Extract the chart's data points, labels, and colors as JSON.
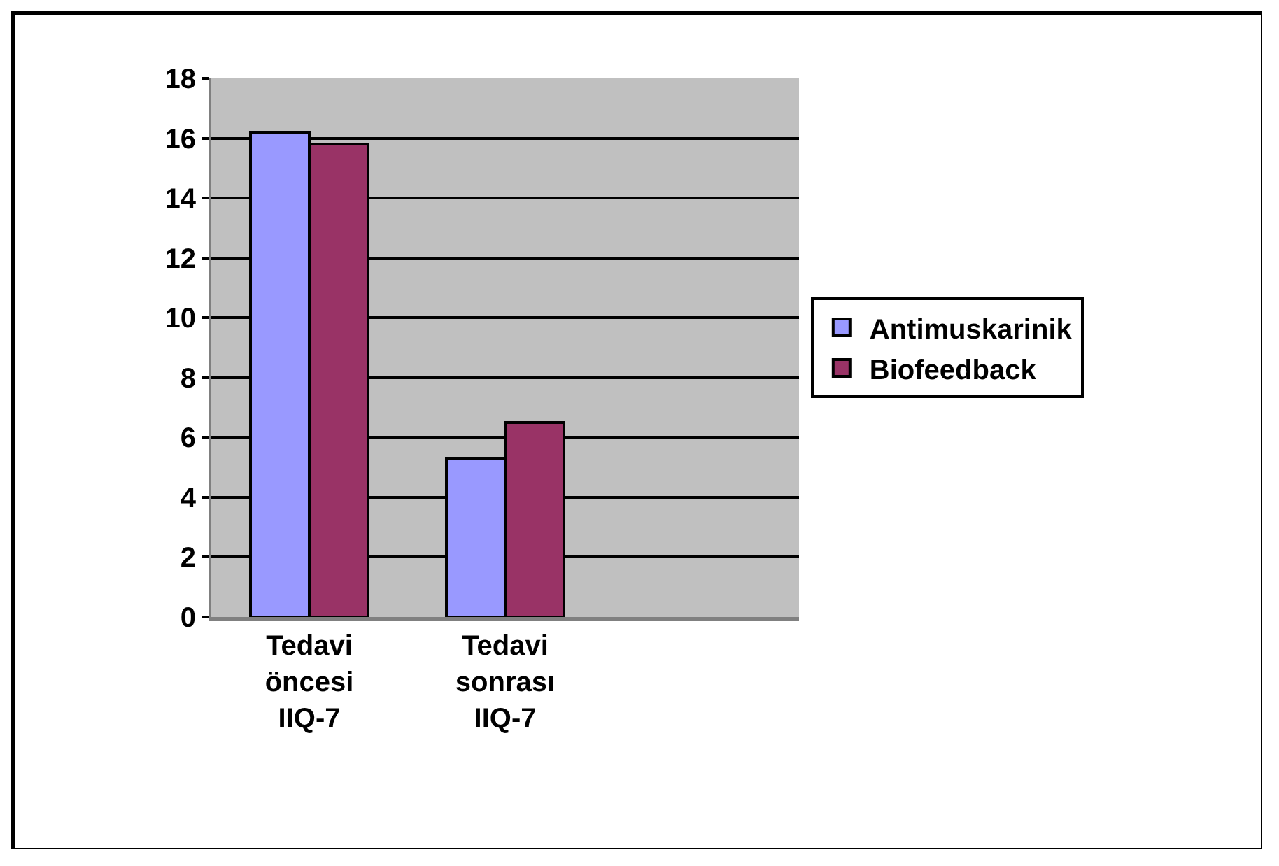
{
  "chart_data": {
    "type": "bar",
    "categories": [
      "Tedavi öncesi IIQ-7",
      "Tedavi sonrası IIQ-7"
    ],
    "series": [
      {
        "name": "Antimuskarinik",
        "color": "#9999ff",
        "values": [
          16.2,
          5.3
        ]
      },
      {
        "name": "Biofeedback",
        "color": "#993366",
        "values": [
          15.8,
          6.5
        ]
      }
    ],
    "ylim": [
      0,
      18
    ],
    "yticks": [
      0,
      2,
      4,
      6,
      8,
      10,
      12,
      14,
      16,
      18
    ],
    "grid": "y",
    "legend": "right"
  }
}
